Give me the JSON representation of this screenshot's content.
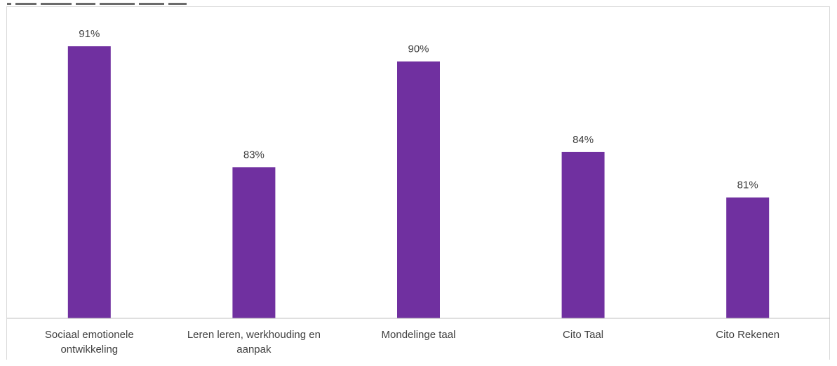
{
  "chart_data": {
    "type": "bar",
    "categories": [
      [
        "Sociaal emotionele",
        "ontwikkeling"
      ],
      [
        "Leren leren, werkhouding en",
        "aanpak"
      ],
      [
        "Mondelinge taal"
      ],
      [
        "Cito Taal"
      ],
      [
        "Cito Rekenen"
      ]
    ],
    "values": [
      91,
      83,
      90,
      84,
      81
    ],
    "value_labels": [
      "91%",
      "83%",
      "90%",
      "84%",
      "81%"
    ],
    "bar_color": "#7030a0",
    "axis_color": "#bfbfbf",
    "text_color": "#404040",
    "ylim": [
      73,
      93
    ],
    "grid": false,
    "legend": "none"
  }
}
